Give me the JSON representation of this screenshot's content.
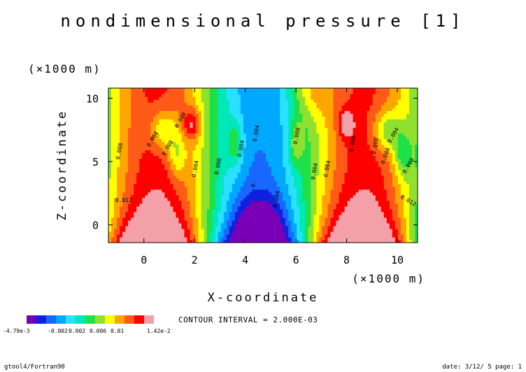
{
  "chart_data": {
    "type": "heatmap",
    "title": "nondimensional pressure [1]",
    "xlabel": "X-coordinate",
    "ylabel": "Z-coordinate",
    "x_unit": "(×1000 m)",
    "y_unit": "(×1000 m)",
    "xlim": [
      -1.4,
      10.8
    ],
    "ylim": [
      -1.4,
      10.8
    ],
    "x_ticks": [
      0,
      2,
      4,
      6,
      8,
      10
    ],
    "y_ticks": [
      0,
      5,
      10
    ],
    "x_tick_labels": [
      "0",
      "2",
      "4",
      "6",
      "8",
      "10"
    ],
    "y_tick_labels": [
      "0",
      "5",
      "10"
    ],
    "contour_interval_text": "CONTOUR INTERVAL = 2.000E-03",
    "contour_line_labels": [
      "0.012",
      "0.008",
      "0.004",
      "0.008",
      "0.008",
      "0.004",
      "0.008",
      "0.004",
      "0.004",
      "0.",
      "0.004",
      "0.008",
      "0.004",
      "0.004",
      "0.008",
      "0.008",
      "0.004",
      "0.008",
      "0.012",
      "0.004"
    ],
    "colorbar": {
      "min_label": "-4.79e-3",
      "max_label": "1.42e-2",
      "tick_labels": [
        "-0.002",
        "0.002",
        "0.006",
        "0.01"
      ],
      "colors": [
        "#7a00b8",
        "#1020e0",
        "#1868ff",
        "#00a8ff",
        "#28e0ff",
        "#00e8b8",
        "#1ee048",
        "#90e030",
        "#ffff00",
        "#ffa500",
        "#ff5a18",
        "#ff0000",
        "#f4a0a8"
      ]
    }
  },
  "footer": {
    "left": "gtool4/Fortran90",
    "right": "date: 3/12/ 5 page: 1"
  }
}
